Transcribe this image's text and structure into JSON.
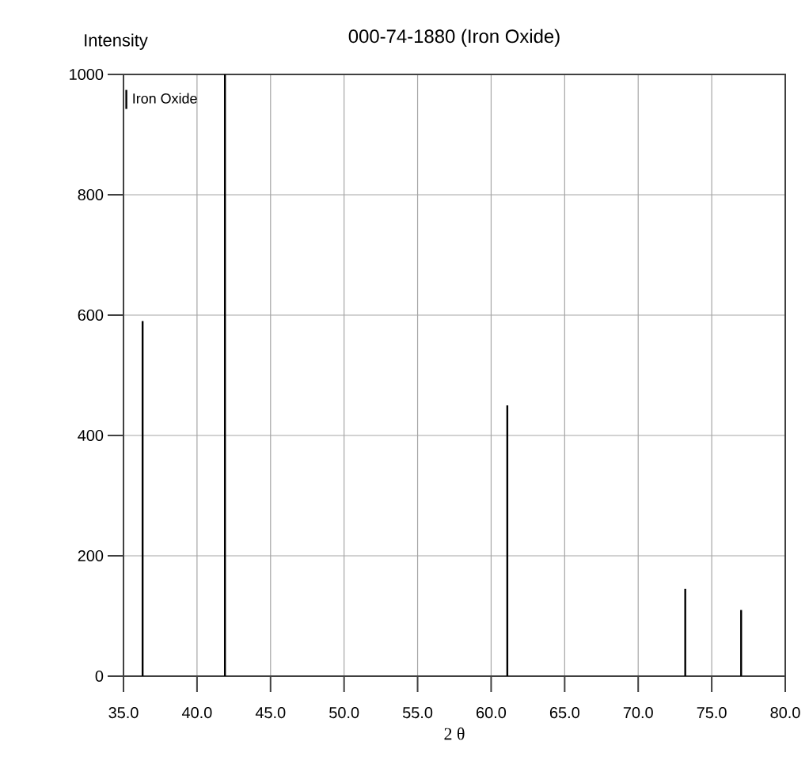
{
  "chart_data": {
    "type": "bar",
    "title": "000-74-1880 (Iron Oxide)",
    "xlabel": "2 θ",
    "ylabel": "Intensity",
    "x": [
      36.3,
      41.9,
      61.1,
      73.2,
      77.0
    ],
    "series": [
      {
        "name": "Iron Oxide",
        "color": "#000000",
        "values": [
          590,
          1000,
          450,
          145,
          110
        ]
      }
    ],
    "xlim": [
      35,
      80
    ],
    "ylim": [
      0,
      1000
    ],
    "xticks": [
      {
        "value": 35,
        "label": "35.0"
      },
      {
        "value": 40,
        "label": "40.0"
      },
      {
        "value": 45,
        "label": "45.0"
      },
      {
        "value": 50,
        "label": "50.0"
      },
      {
        "value": 55,
        "label": "55.0"
      },
      {
        "value": 60,
        "label": "60.0"
      },
      {
        "value": 65,
        "label": "65.0"
      },
      {
        "value": 70,
        "label": "70.0"
      },
      {
        "value": 75,
        "label": "75.0"
      },
      {
        "value": 80,
        "label": "80.0"
      }
    ],
    "yticks": [
      0,
      200,
      400,
      600,
      800,
      1000
    ],
    "grid": true,
    "legend": "top left"
  }
}
